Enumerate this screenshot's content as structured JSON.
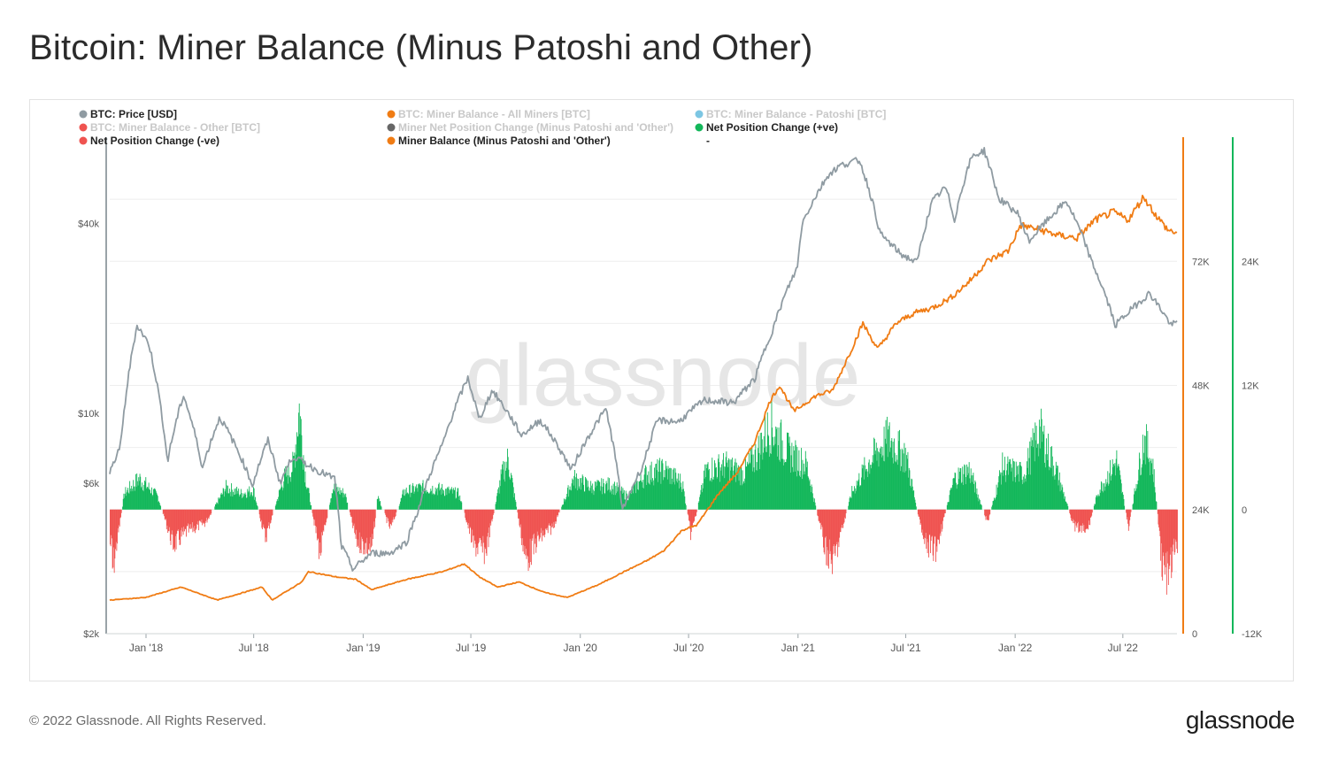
{
  "page": {
    "title": "Bitcoin: Miner Balance (Minus Patoshi and Other)",
    "copyright": "© 2022 Glassnode. All Rights Reserved.",
    "brand": "glassnode",
    "watermark": "glassnode"
  },
  "colors": {
    "price": "#8f9ba2",
    "balance": "#f07c14",
    "positive": "#13b75a",
    "negative": "#ef5350",
    "patoshi": "#7cc6e3",
    "net_grey": "#666666",
    "legend_inactive": "#c8c8c8",
    "legend_active": "#222222",
    "axis_text": "#555555",
    "grid": "#eeeeee",
    "watermark": "#e6e6e6"
  },
  "legend": [
    {
      "label": "BTC: Price [USD]",
      "color": "#8f9ba2",
      "active": true
    },
    {
      "label": "BTC: Miner Balance - All Miners [BTC]",
      "color": "#f07c14",
      "active": false
    },
    {
      "label": "BTC: Miner Balance - Patoshi [BTC]",
      "color": "#7cc6e3",
      "active": false
    },
    {
      "label": "BTC: Miner Balance - Other [BTC]",
      "color": "#ef5350",
      "active": false
    },
    {
      "label": "Miner Net Position Change (Minus Patoshi and 'Other')",
      "color": "#666666",
      "active": false
    },
    {
      "label": "Net Position Change (+ve)",
      "color": "#13b75a",
      "active": true
    },
    {
      "label": "Net Position Change (-ve)",
      "color": "#ef5350",
      "active": true
    },
    {
      "label": "Miner Balance (Minus Patoshi and 'Other')",
      "color": "#f07c14",
      "active": true
    },
    {
      "label": "-",
      "color": null,
      "active": true
    }
  ],
  "chart_data": {
    "type": "line",
    "x_ticks": [
      "Jan '18",
      "Jul '18",
      "Jan '19",
      "Jul '19",
      "Jan '20",
      "Jul '20",
      "Jan '21",
      "Jul '21",
      "Jan '22",
      "Jul '22"
    ],
    "x_range": [
      "2017-11-01",
      "2022-09-30"
    ],
    "price_axis": {
      "scale": "log",
      "ticks": [
        "$2k",
        "$6k",
        "$10k",
        "$40k"
      ],
      "range": [
        2000,
        75000
      ]
    },
    "balance_axis": {
      "ticks": [
        "0",
        "24K",
        "48K",
        "72K"
      ],
      "range": [
        0,
        96000
      ]
    },
    "net_axis": {
      "ticks": [
        "-12K",
        "0",
        "12K",
        "24K"
      ],
      "range": [
        -12000,
        36000
      ]
    },
    "series": [
      {
        "name": "BTC: Price [USD]",
        "axis": "price",
        "points": [
          [
            "2017-11-01",
            6400
          ],
          [
            "2017-11-20",
            8000
          ],
          [
            "2017-12-17",
            19000
          ],
          [
            "2018-01-06",
            16500
          ],
          [
            "2018-02-06",
            7000
          ],
          [
            "2018-03-05",
            11400
          ],
          [
            "2018-04-06",
            6700
          ],
          [
            "2018-05-05",
            9700
          ],
          [
            "2018-06-29",
            5900
          ],
          [
            "2018-07-25",
            8200
          ],
          [
            "2018-08-14",
            6000
          ],
          [
            "2018-09-05",
            7300
          ],
          [
            "2018-10-15",
            6600
          ],
          [
            "2018-11-14",
            6200
          ],
          [
            "2018-11-25",
            3800
          ],
          [
            "2018-12-15",
            3200
          ],
          [
            "2019-01-15",
            3600
          ],
          [
            "2019-02-15",
            3600
          ],
          [
            "2019-03-15",
            3900
          ],
          [
            "2019-04-03",
            4900
          ],
          [
            "2019-05-15",
            8000
          ],
          [
            "2019-06-26",
            12900
          ],
          [
            "2019-07-15",
            9500
          ],
          [
            "2019-08-06",
            11800
          ],
          [
            "2019-09-24",
            8500
          ],
          [
            "2019-10-26",
            9500
          ],
          [
            "2019-12-17",
            6600
          ],
          [
            "2020-02-13",
            10300
          ],
          [
            "2020-03-12",
            4900
          ],
          [
            "2020-04-15",
            6800
          ],
          [
            "2020-05-10",
            9500
          ],
          [
            "2020-06-15",
            9400
          ],
          [
            "2020-07-27",
            11000
          ],
          [
            "2020-09-15",
            10800
          ],
          [
            "2020-10-21",
            12900
          ],
          [
            "2020-11-20",
            18500
          ],
          [
            "2020-12-31",
            29000
          ],
          [
            "2021-01-08",
            40000
          ],
          [
            "2021-02-21",
            57000
          ],
          [
            "2021-03-13",
            61000
          ],
          [
            "2021-04-14",
            63500
          ],
          [
            "2021-05-19",
            37000
          ],
          [
            "2021-06-22",
            32000
          ],
          [
            "2021-07-20",
            30000
          ],
          [
            "2021-08-15",
            47000
          ],
          [
            "2021-09-06",
            52000
          ],
          [
            "2021-09-21",
            41000
          ],
          [
            "2021-10-20",
            65000
          ],
          [
            "2021-11-10",
            68000
          ],
          [
            "2021-12-04",
            48000
          ],
          [
            "2022-01-05",
            43000
          ],
          [
            "2022-01-24",
            35000
          ],
          [
            "2022-03-28",
            47000
          ],
          [
            "2022-05-10",
            30000
          ],
          [
            "2022-06-18",
            19000
          ],
          [
            "2022-08-15",
            24000
          ],
          [
            "2022-09-20",
            19000
          ],
          [
            "2022-09-30",
            19400
          ]
        ]
      },
      {
        "name": "Miner Balance (Minus Patoshi and 'Other')",
        "axis": "balance",
        "points": [
          [
            "2017-11-01",
            6500
          ],
          [
            "2017-12-31",
            7000
          ],
          [
            "2018-03-01",
            9000
          ],
          [
            "2018-05-01",
            6500
          ],
          [
            "2018-07-15",
            9000
          ],
          [
            "2018-08-01",
            6500
          ],
          [
            "2018-09-20",
            10000
          ],
          [
            "2018-10-01",
            12000
          ],
          [
            "2018-11-15",
            11000
          ],
          [
            "2018-12-20",
            10500
          ],
          [
            "2019-01-15",
            8500
          ],
          [
            "2019-03-15",
            10500
          ],
          [
            "2019-05-15",
            12000
          ],
          [
            "2019-06-20",
            13500
          ],
          [
            "2019-07-15",
            11000
          ],
          [
            "2019-08-15",
            9000
          ],
          [
            "2019-09-20",
            10000
          ],
          [
            "2019-11-01",
            8000
          ],
          [
            "2019-12-10",
            7000
          ],
          [
            "2020-02-01",
            9500
          ],
          [
            "2020-03-15",
            12000
          ],
          [
            "2020-04-20",
            14000
          ],
          [
            "2020-05-20",
            16000
          ],
          [
            "2020-06-20",
            20000
          ],
          [
            "2020-07-15",
            21000
          ],
          [
            "2020-08-20",
            27000
          ],
          [
            "2020-09-20",
            31000
          ],
          [
            "2020-10-20",
            37000
          ],
          [
            "2020-11-15",
            45000
          ],
          [
            "2020-12-01",
            48000
          ],
          [
            "2020-12-25",
            43000
          ],
          [
            "2021-01-31",
            46000
          ],
          [
            "2021-02-28",
            47000
          ],
          [
            "2021-04-01",
            55000
          ],
          [
            "2021-04-20",
            60000
          ],
          [
            "2021-05-15",
            55000
          ],
          [
            "2021-06-15",
            60000
          ],
          [
            "2021-07-15",
            62000
          ],
          [
            "2021-08-15",
            63000
          ],
          [
            "2021-09-15",
            65000
          ],
          [
            "2021-10-15",
            68000
          ],
          [
            "2021-11-15",
            72000
          ],
          [
            "2021-12-20",
            74000
          ],
          [
            "2022-01-10",
            79000
          ],
          [
            "2022-02-15",
            78000
          ],
          [
            "2022-03-15",
            77000
          ],
          [
            "2022-04-15",
            76500
          ],
          [
            "2022-05-15",
            80000
          ],
          [
            "2022-06-15",
            81500
          ],
          [
            "2022-07-10",
            80000
          ],
          [
            "2022-08-05",
            84500
          ],
          [
            "2022-08-25",
            81000
          ],
          [
            "2022-09-15",
            78000
          ],
          [
            "2022-09-30",
            77500
          ]
        ]
      },
      {
        "name": "Net Position Change",
        "axis": "net",
        "type": "bar",
        "note_positive": "Net Position Change (+ve)",
        "note_negative": "Net Position Change (-ve)",
        "points": [
          [
            "2017-11-05",
            -7000
          ],
          [
            "2017-11-25",
            1800
          ],
          [
            "2017-12-20",
            3500
          ],
          [
            "2018-01-20",
            1500
          ],
          [
            "2018-02-15",
            -4000
          ],
          [
            "2018-03-10",
            -2500
          ],
          [
            "2018-04-10",
            -1500
          ],
          [
            "2018-05-15",
            2500
          ],
          [
            "2018-06-10",
            1800
          ],
          [
            "2018-06-30",
            2200
          ],
          [
            "2018-07-20",
            -3200
          ],
          [
            "2018-08-20",
            3500
          ],
          [
            "2018-09-05",
            5000
          ],
          [
            "2018-09-15",
            11500
          ],
          [
            "2018-09-25",
            4000
          ],
          [
            "2018-10-20",
            -5000
          ],
          [
            "2018-11-10",
            2500
          ],
          [
            "2018-12-01",
            1800
          ],
          [
            "2018-12-20",
            -3500
          ],
          [
            "2019-01-15",
            -4500
          ],
          [
            "2019-01-25",
            1500
          ],
          [
            "2019-02-15",
            -2200
          ],
          [
            "2019-03-10",
            2000
          ],
          [
            "2019-04-10",
            2500
          ],
          [
            "2019-05-10",
            2300
          ],
          [
            "2019-06-10",
            1800
          ],
          [
            "2019-07-05",
            -4000
          ],
          [
            "2019-07-25",
            -4800
          ],
          [
            "2019-08-20",
            3500
          ],
          [
            "2019-09-01",
            5700
          ],
          [
            "2019-10-01",
            -5800
          ],
          [
            "2019-10-20",
            -3500
          ],
          [
            "2019-11-15",
            -2000
          ],
          [
            "2019-12-20",
            3500
          ],
          [
            "2020-01-20",
            2500
          ],
          [
            "2020-02-20",
            2800
          ],
          [
            "2020-03-20",
            1500
          ],
          [
            "2020-04-20",
            4000
          ],
          [
            "2020-05-20",
            4500
          ],
          [
            "2020-06-20",
            3000
          ],
          [
            "2020-07-05",
            -3000
          ],
          [
            "2020-07-30",
            4500
          ],
          [
            "2020-09-01",
            5000
          ],
          [
            "2020-10-01",
            4000
          ],
          [
            "2020-10-25",
            6500
          ],
          [
            "2020-11-15",
            9500
          ],
          [
            "2020-12-15",
            6500
          ],
          [
            "2021-01-15",
            5000
          ],
          [
            "2021-02-15",
            -4500
          ],
          [
            "2021-03-01",
            -6000
          ],
          [
            "2021-04-01",
            2000
          ],
          [
            "2021-05-01",
            5500
          ],
          [
            "2021-06-01",
            8000
          ],
          [
            "2021-07-01",
            6000
          ],
          [
            "2021-08-01",
            -4000
          ],
          [
            "2021-08-20",
            -4500
          ],
          [
            "2021-09-20",
            3500
          ],
          [
            "2021-10-15",
            4500
          ],
          [
            "2021-11-15",
            -1500
          ],
          [
            "2021-12-10",
            4800
          ],
          [
            "2022-01-15",
            4000
          ],
          [
            "2022-02-10",
            9000
          ],
          [
            "2022-03-10",
            4500
          ],
          [
            "2022-04-10",
            -2000
          ],
          [
            "2022-05-01",
            -2500
          ],
          [
            "2022-05-20",
            2000
          ],
          [
            "2022-06-20",
            5500
          ],
          [
            "2022-07-10",
            -2000
          ],
          [
            "2022-08-05",
            8000
          ],
          [
            "2022-08-20",
            5000
          ],
          [
            "2022-09-05",
            -6500
          ],
          [
            "2022-09-15",
            -7500
          ],
          [
            "2022-09-28",
            -4000
          ]
        ]
      }
    ]
  }
}
